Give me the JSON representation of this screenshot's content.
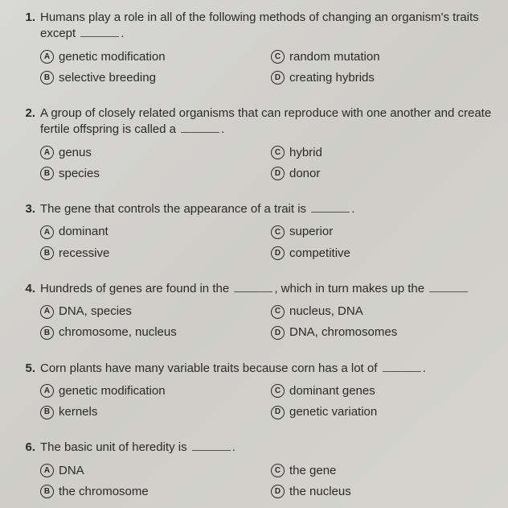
{
  "questions": [
    {
      "num": "1.",
      "text_before": "Humans play a role in all of the following methods of changing an organism's traits except ",
      "text_after": ".",
      "opts": {
        "A": "genetic modification",
        "B": "selective breeding",
        "C": "random mutation",
        "D": "creating hybrids"
      }
    },
    {
      "num": "2.",
      "text_before": "A group of closely related organisms that can reproduce with one another and create fertile offspring is called a ",
      "text_after": ".",
      "opts": {
        "A": "genus",
        "B": "species",
        "C": "hybrid",
        "D": "donor"
      }
    },
    {
      "num": "3.",
      "text_before": "The gene that controls the appearance of a trait is ",
      "text_after": ".",
      "opts": {
        "A": "dominant",
        "B": "recessive",
        "C": "superior",
        "D": "competitive"
      }
    },
    {
      "num": "4.",
      "text_before": "Hundreds of genes are found in the ",
      "text_after": ", which in turn makes up the ",
      "trailing_blank": true,
      "opts": {
        "A": "DNA, species",
        "B": "chromosome, nucleus",
        "C": "nucleus, DNA",
        "D": "DNA, chromosomes"
      }
    },
    {
      "num": "5.",
      "text_before": "Corn plants have many variable traits because corn has a lot of ",
      "text_after": ".",
      "opts": {
        "A": "genetic modification",
        "B": "kernels",
        "C": "dominant genes",
        "D": "genetic variation"
      }
    },
    {
      "num": "6.",
      "text_before": "The basic unit of heredity is ",
      "text_after": ".",
      "opts": {
        "A": "DNA",
        "B": "the chromosome",
        "C": "the gene",
        "D": "the nucleus"
      }
    }
  ],
  "letters": {
    "A": "A",
    "B": "B",
    "C": "C",
    "D": "D"
  }
}
